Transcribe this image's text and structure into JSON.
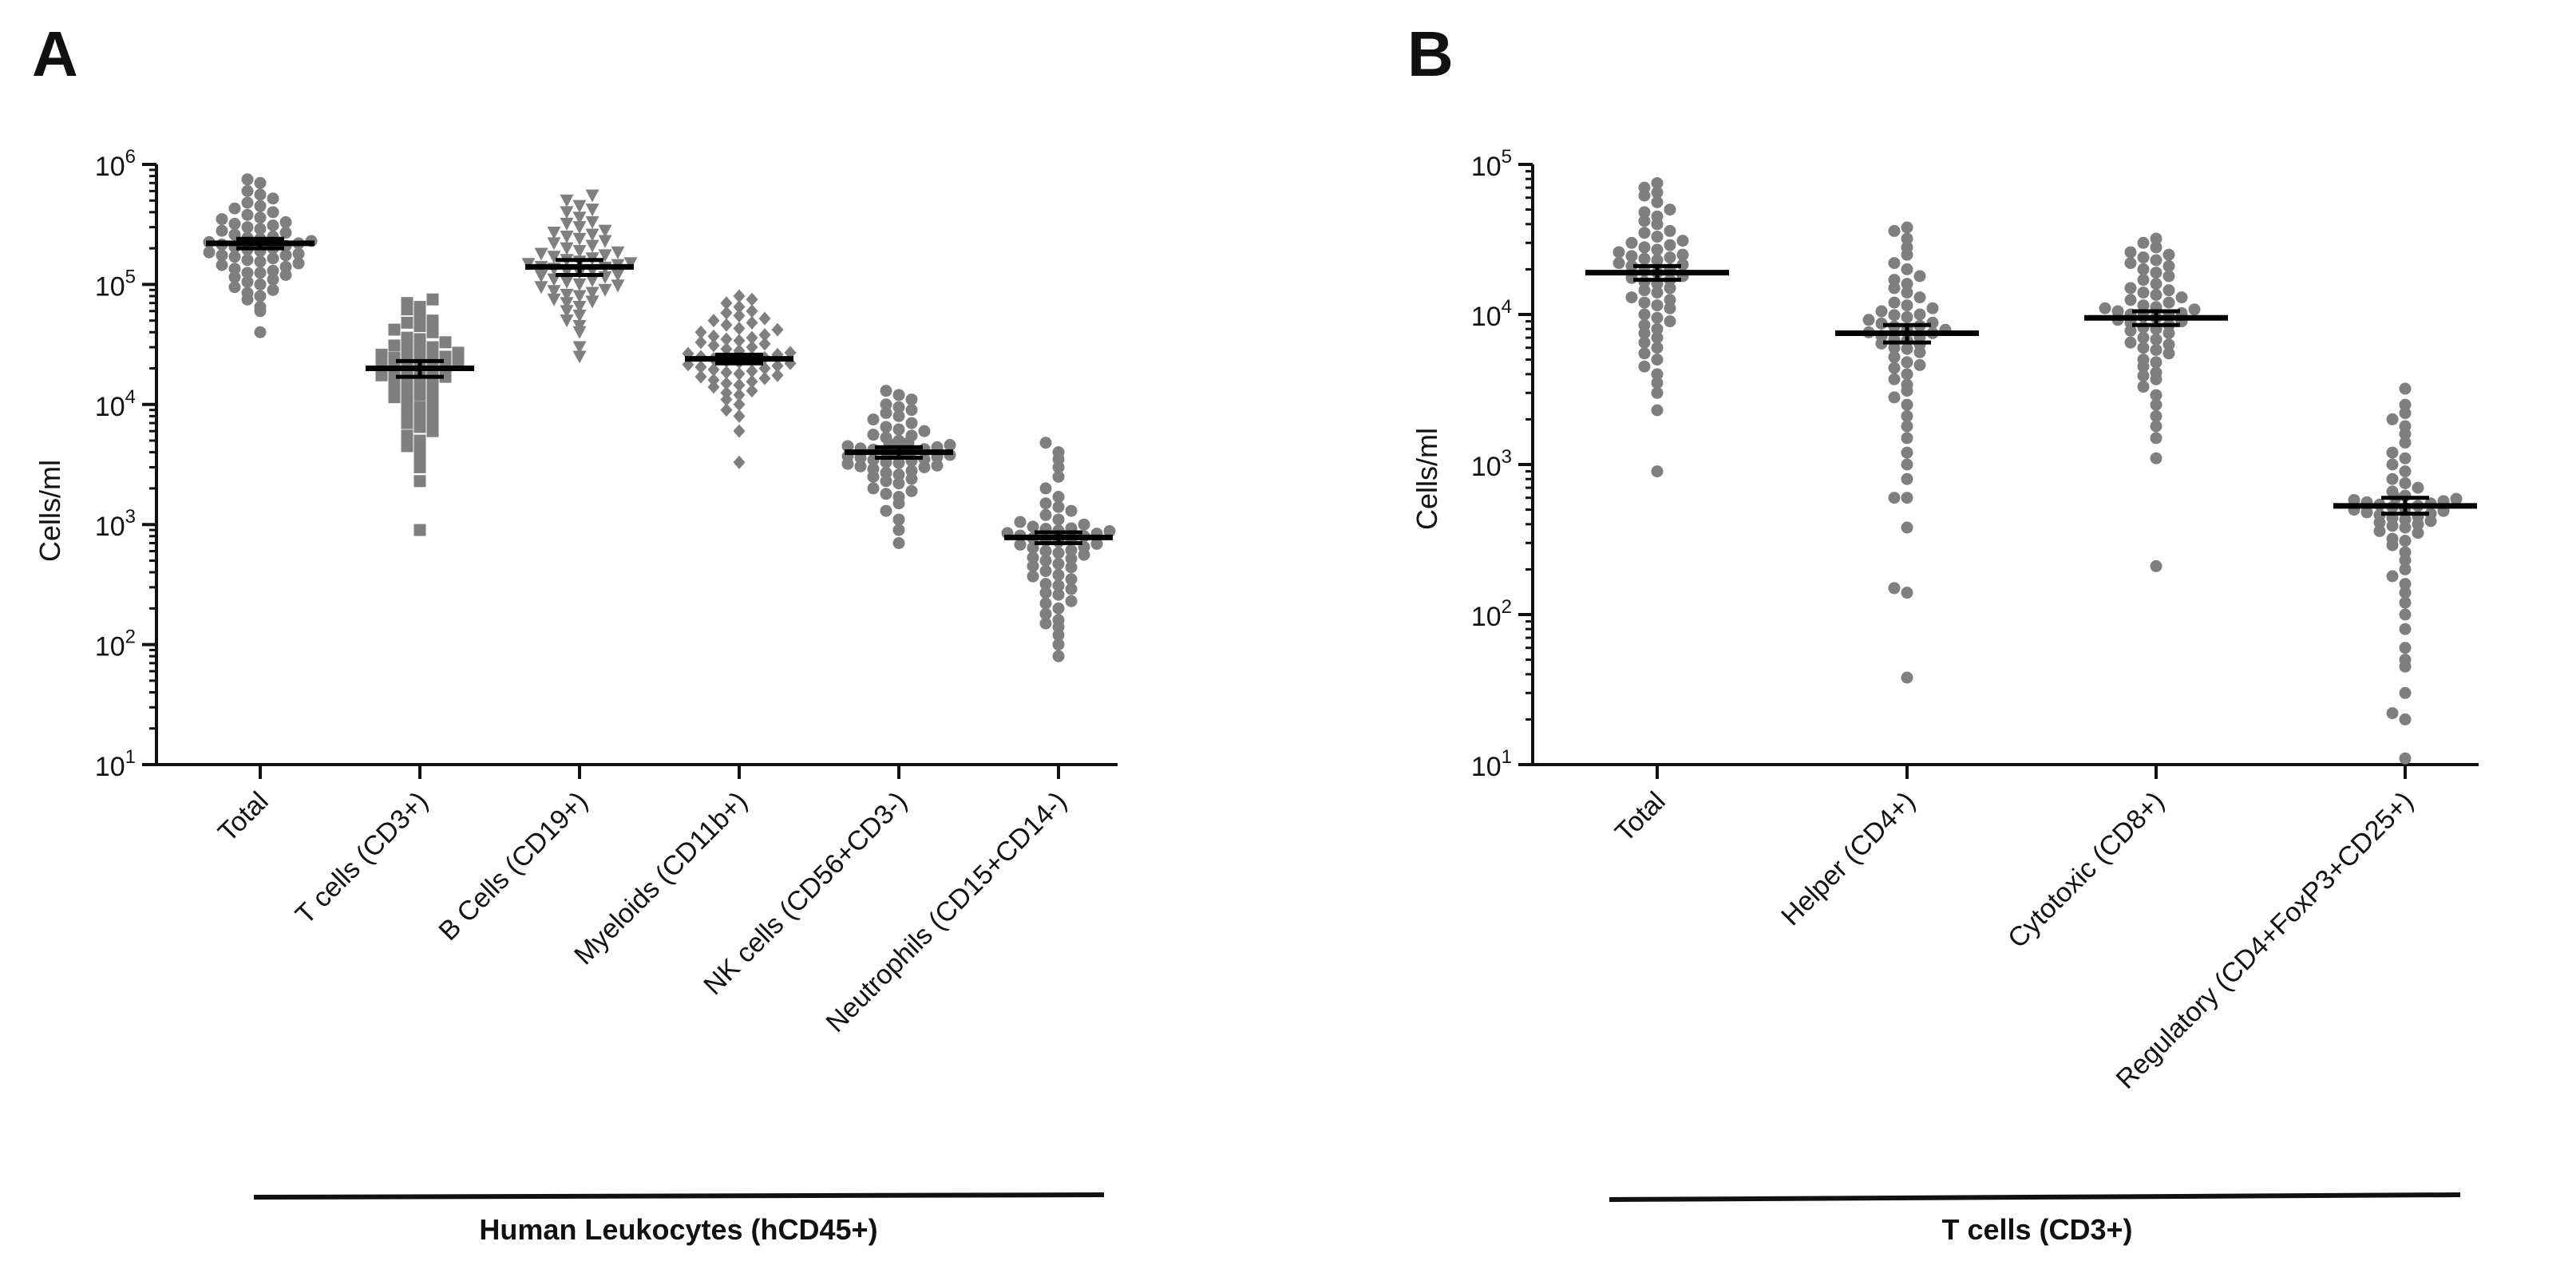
{
  "colors": {
    "points": "#7f7f7f",
    "axis": "#111111",
    "mean": "#000000"
  },
  "chart_data": [
    {
      "panel": "A",
      "type": "scatter",
      "scale": "log10",
      "ylabel": "Cells/ml",
      "ylim": [
        10,
        1000000
      ],
      "yticks": [
        {
          "exp": 1,
          "label": "10",
          "sup": "1"
        },
        {
          "exp": 2,
          "label": "10",
          "sup": "2"
        },
        {
          "exp": 3,
          "label": "10",
          "sup": "3"
        },
        {
          "exp": 4,
          "label": "10",
          "sup": "4"
        },
        {
          "exp": 5,
          "label": "10",
          "sup": "5"
        },
        {
          "exp": 6,
          "label": "10",
          "sup": "6"
        }
      ],
      "group_label": "Human Leukocytes (hCD45+)",
      "categories": [
        "Total",
        "T cells (CD3+)",
        "B Cells  (CD19+)",
        "Myeloids (CD11b+)",
        "NK cells (CD56+CD3-)",
        "Neutrophils (CD15+CD14-)"
      ],
      "series": [
        {
          "name": "Total",
          "marker": "circle",
          "mean": 220000,
          "sem": [
            200000,
            240000
          ],
          "values": [
            40000,
            60000,
            80000,
            90000,
            100000,
            110000,
            120000,
            130000,
            140000,
            150000,
            160000,
            170000,
            180000,
            190000,
            200000,
            210000,
            220000,
            230000,
            250000,
            270000,
            290000,
            310000,
            330000,
            360000,
            400000,
            450000,
            520000,
            600000,
            700000,
            750000,
            65000,
            85000,
            105000,
            125000,
            145000,
            175000,
            205000,
            240000,
            280000,
            320000,
            380000,
            430000,
            115000,
            135000,
            155000,
            185000,
            215000,
            260000,
            300000,
            95000,
            165000,
            195000,
            225000,
            245000,
            350000,
            480000,
            560000,
            75000,
            125000,
            175000
          ]
        },
        {
          "name": "T cells (CD3+)",
          "marker": "square",
          "mean": 20000,
          "sem": [
            17000,
            23000
          ],
          "values": [
            900,
            2300,
            3000,
            3500,
            4000,
            4500,
            5000,
            6000,
            7000,
            8000,
            9000,
            10000,
            11000,
            12000,
            13000,
            14000,
            15000,
            16000,
            17000,
            18000,
            19000,
            20000,
            21000,
            22000,
            23000,
            24000,
            25000,
            27000,
            30000,
            33000,
            36000,
            40000,
            45000,
            50000,
            56000,
            62000,
            70000,
            75000,
            8500,
            9500,
            12500,
            14500,
            16500,
            19500,
            23500,
            26000,
            28000,
            31000,
            35000,
            42000,
            5500,
            6500,
            7500,
            11500,
            17500,
            21500,
            24500,
            29000,
            48000,
            65000
          ]
        },
        {
          "name": "B Cells  (CD19+)",
          "marker": "triangle-down",
          "mean": 140000,
          "sem": [
            120000,
            160000
          ],
          "values": [
            25000,
            30000,
            40000,
            50000,
            55000,
            60000,
            65000,
            70000,
            75000,
            80000,
            85000,
            90000,
            95000,
            100000,
            105000,
            110000,
            115000,
            120000,
            125000,
            130000,
            135000,
            140000,
            145000,
            150000,
            160000,
            170000,
            180000,
            190000,
            200000,
            220000,
            240000,
            260000,
            280000,
            300000,
            330000,
            360000,
            400000,
            450000,
            500000,
            550000,
            88000,
            98000,
            108000,
            118000,
            128000,
            138000,
            148000,
            165000,
            175000,
            210000,
            230000,
            250000,
            45000,
            72000,
            82000,
            155000,
            185000,
            270000,
            320000,
            420000
          ]
        },
        {
          "name": "Myeloids (CD11b+)",
          "marker": "diamond",
          "mean": 24000,
          "sem": [
            22000,
            26000
          ],
          "values": [
            3300,
            6000,
            8000,
            9000,
            10000,
            11000,
            12000,
            13000,
            14000,
            15000,
            16000,
            17000,
            18000,
            19000,
            20000,
            21000,
            22000,
            23000,
            24000,
            25000,
            26000,
            27000,
            28000,
            30000,
            32000,
            34000,
            36000,
            38000,
            40000,
            43000,
            46000,
            50000,
            55000,
            60000,
            65000,
            70000,
            75000,
            80000,
            12500,
            14500,
            16500,
            18500,
            20500,
            22500,
            24500,
            26500,
            29000,
            31000,
            33000,
            35000,
            37000,
            42000,
            48000,
            52000,
            58000,
            15500,
            17500,
            19500,
            21500,
            23500
          ]
        },
        {
          "name": "NK cells (CD56+CD3-)",
          "marker": "circle",
          "mean": 4000,
          "sem": [
            3600,
            4400
          ],
          "values": [
            700,
            900,
            1100,
            1300,
            1500,
            1700,
            1900,
            2000,
            2200,
            2400,
            2600,
            2800,
            3000,
            3200,
            3400,
            3600,
            3800,
            4000,
            4200,
            4400,
            4600,
            4800,
            5000,
            5300,
            5600,
            6000,
            6500,
            7000,
            7500,
            8000,
            9000,
            10000,
            11000,
            12000,
            13000,
            2500,
            2700,
            2900,
            3100,
            3300,
            3500,
            3700,
            3900,
            4100,
            4300,
            4500,
            4700,
            3050,
            3250,
            3450,
            3650,
            3850,
            4050,
            4250,
            5500,
            6200,
            2300,
            1800,
            8500,
            9500
          ]
        },
        {
          "name": "Neutrophils (CD15+CD14-)",
          "marker": "circle",
          "mean": 780,
          "sem": [
            700,
            860
          ],
          "values": [
            80,
            100,
            120,
            140,
            160,
            180,
            200,
            230,
            260,
            290,
            320,
            350,
            380,
            410,
            440,
            470,
            500,
            530,
            560,
            600,
            640,
            680,
            720,
            760,
            800,
            840,
            880,
            920,
            960,
            1000,
            1050,
            1100,
            1200,
            1300,
            1400,
            1500,
            1700,
            2000,
            2500,
            3000,
            3500,
            4000,
            4800,
            610,
            650,
            690,
            730,
            770,
            810,
            850,
            890,
            930,
            450,
            520,
            580,
            370,
            310,
            270,
            220,
            150
          ]
        }
      ]
    },
    {
      "panel": "B",
      "type": "scatter",
      "scale": "log10",
      "ylabel": "Cells/ml",
      "ylim": [
        10,
        100000
      ],
      "yticks": [
        {
          "exp": 1,
          "label": "10",
          "sup": "1"
        },
        {
          "exp": 2,
          "label": "10",
          "sup": "2"
        },
        {
          "exp": 3,
          "label": "10",
          "sup": "3"
        },
        {
          "exp": 4,
          "label": "10",
          "sup": "4"
        },
        {
          "exp": 5,
          "label": "10",
          "sup": "5"
        }
      ],
      "group_label": "T cells (CD3+)",
      "categories": [
        "Total",
        "Helper (CD4+)",
        "Cytotoxic (CD8+)",
        "Regulatory (CD4+FoxP3+CD25+)"
      ],
      "series": [
        {
          "name": "Total",
          "marker": "circle",
          "mean": 19000,
          "sem": [
            17000,
            21000
          ],
          "values": [
            900,
            2300,
            3000,
            3500,
            4000,
            4500,
            5000,
            6000,
            7000,
            8000,
            9000,
            10000,
            11000,
            12000,
            13000,
            14000,
            15000,
            16000,
            17000,
            18000,
            19000,
            20000,
            21000,
            22000,
            23000,
            24000,
            25000,
            27000,
            30000,
            33000,
            36000,
            40000,
            45000,
            50000,
            56000,
            62000,
            70000,
            75000,
            8500,
            9500,
            12500,
            14500,
            16500,
            19500,
            23500,
            26000,
            28000,
            31000,
            35000,
            42000,
            5500,
            6500,
            7500,
            11500,
            17500,
            21500,
            24500,
            29000,
            48000,
            65000
          ]
        },
        {
          "name": "Helper (CD4+)",
          "marker": "circle",
          "mean": 7500,
          "sem": [
            6500,
            8500
          ],
          "values": [
            38,
            140,
            150,
            380,
            600,
            600,
            800,
            1000,
            1200,
            1500,
            1800,
            2100,
            2500,
            2800,
            3100,
            3400,
            3700,
            4000,
            4400,
            4800,
            5200,
            5600,
            6000,
            6400,
            6800,
            7200,
            7600,
            8000,
            8400,
            8800,
            9200,
            9600,
            10000,
            10500,
            11000,
            11500,
            12000,
            13000,
            14000,
            15000,
            16000,
            17000,
            18000,
            20000,
            22000,
            25000,
            28000,
            32000,
            36000,
            38000,
            5900,
            6300,
            6700,
            7100,
            7500,
            7900,
            8300,
            8700,
            4600,
            9900
          ]
        },
        {
          "name": "Cytotoxic (CD8+)",
          "marker": "circle",
          "mean": 9500,
          "sem": [
            8500,
            10500
          ],
          "values": [
            210,
            1100,
            1500,
            1800,
            2100,
            2500,
            2900,
            3300,
            3700,
            4100,
            4500,
            5000,
            5500,
            6000,
            6500,
            7000,
            7500,
            8000,
            8500,
            9000,
            9500,
            10000,
            10500,
            11000,
            11500,
            12000,
            13000,
            14000,
            15000,
            16000,
            17000,
            18000,
            20000,
            22000,
            24000,
            26000,
            28000,
            30000,
            32000,
            8200,
            8800,
            9200,
            9800,
            10200,
            10800,
            11200,
            7800,
            6800,
            5800,
            4800,
            13500,
            12500,
            14500,
            19000,
            21000,
            23000,
            25000,
            3900,
            6300,
            9700
          ]
        },
        {
          "name": "Regulatory (CD4+FoxP3+CD25+)",
          "marker": "circle",
          "mean": 530,
          "sem": [
            470,
            600
          ],
          "values": [
            11,
            20,
            22,
            30,
            45,
            50,
            60,
            80,
            100,
            120,
            140,
            160,
            180,
            200,
            230,
            260,
            290,
            320,
            350,
            380,
            410,
            440,
            470,
            500,
            530,
            560,
            590,
            620,
            660,
            700,
            750,
            800,
            900,
            1000,
            1100,
            1200,
            1400,
            1600,
            1800,
            2000,
            2200,
            2500,
            3200,
            480,
            510,
            540,
            570,
            600,
            450,
            420,
            390,
            430,
            460,
            490,
            520,
            550,
            580,
            400,
            360,
            310
          ]
        }
      ]
    }
  ]
}
